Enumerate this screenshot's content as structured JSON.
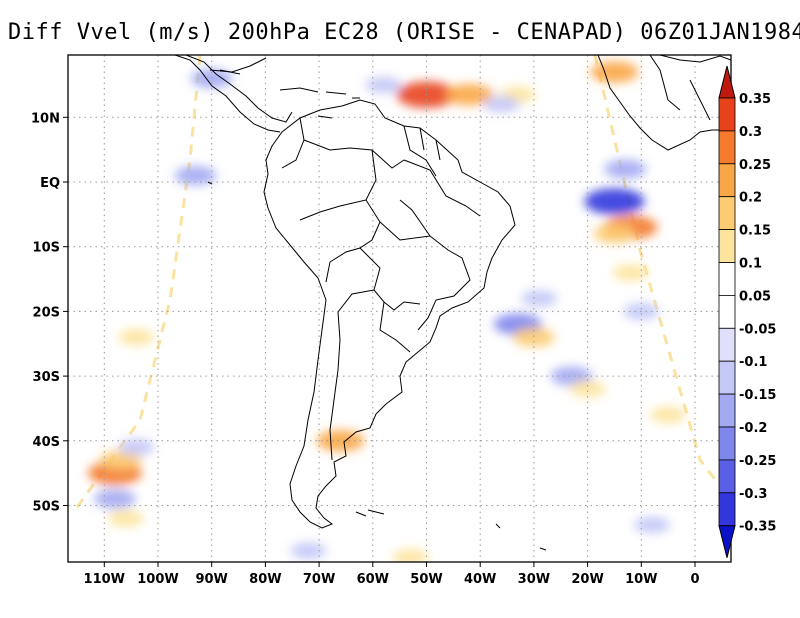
{
  "title": "Diff Vvel (m/s) 200hPa EC28 (ORISE - CENAPAD) 06Z01JAN1984",
  "x_axis_labels": [
    "110W",
    "100W",
    "90W",
    "80W",
    "70W",
    "60W",
    "50W",
    "40W",
    "30W",
    "20W",
    "10W",
    "0"
  ],
  "y_axis_labels": [
    "10N",
    "EQ",
    "10S",
    "20S",
    "30S",
    "40S",
    "50S"
  ],
  "colorbar": {
    "labels": [
      "0.35",
      "0.3",
      "0.25",
      "0.2",
      "0.15",
      "0.1",
      "0.05",
      "-0.05",
      "-0.1",
      "-0.15",
      "-0.2",
      "-0.25",
      "-0.3",
      "-0.35"
    ],
    "colors": [
      "#c01a10",
      "#e8421c",
      "#f47a2e",
      "#f9a746",
      "#fccb72",
      "#fde49e",
      "#ffffff",
      "#dfe1fb",
      "#c3c8f6",
      "#a3aaf2",
      "#7f86ec",
      "#5a5fe6",
      "#3236dc",
      "#0b12c8"
    ]
  },
  "chart_data": {
    "type": "heatmap",
    "variable": "Diff Vvel (m/s) 200hPa",
    "experiment": "EC28 (ORISE - CENAPAD)",
    "time": "06Z01JAN1984",
    "lon_range": [
      -117,
      7
    ],
    "lat_range": [
      -59,
      18
    ],
    "contour_levels": [
      -0.35,
      -0.3,
      -0.25,
      -0.2,
      -0.15,
      -0.1,
      -0.05,
      0.05,
      0.1,
      0.15,
      0.2,
      0.25,
      0.3,
      0.35
    ],
    "blobs": [
      {
        "lon": -50,
        "lat": 13.5,
        "value": 0.3
      },
      {
        "lon": -42,
        "lat": 13.5,
        "value": 0.2
      },
      {
        "lon": -33,
        "lat": 13.5,
        "value": 0.1
      },
      {
        "lon": -15,
        "lat": 17,
        "value": 0.2
      },
      {
        "lon": -58,
        "lat": 15,
        "value": -0.1
      },
      {
        "lon": -36,
        "lat": 12,
        "value": -0.1
      },
      {
        "lon": -93,
        "lat": 1,
        "value": -0.15
      },
      {
        "lon": -90,
        "lat": 16,
        "value": -0.15
      },
      {
        "lon": -15,
        "lat": -3,
        "value": -0.3
      },
      {
        "lon": -12,
        "lat": -7,
        "value": 0.25
      },
      {
        "lon": -15,
        "lat": -8,
        "value": 0.15
      },
      {
        "lon": -13,
        "lat": 2,
        "value": -0.15
      },
      {
        "lon": -33,
        "lat": -22,
        "value": -0.2
      },
      {
        "lon": -30,
        "lat": -24,
        "value": 0.15
      },
      {
        "lon": -29,
        "lat": -18,
        "value": -0.1
      },
      {
        "lon": -23,
        "lat": -30,
        "value": -0.15
      },
      {
        "lon": -20,
        "lat": -32,
        "value": 0.1
      },
      {
        "lon": -108,
        "lat": -45,
        "value": 0.25
      },
      {
        "lon": -107,
        "lat": -43,
        "value": 0.15
      },
      {
        "lon": -108,
        "lat": -49,
        "value": -0.15
      },
      {
        "lon": -104,
        "lat": -41,
        "value": -0.1
      },
      {
        "lon": -106,
        "lat": -52,
        "value": 0.1
      },
      {
        "lon": -104,
        "lat": -24,
        "value": 0.1
      },
      {
        "lon": -66,
        "lat": -40,
        "value": 0.2
      },
      {
        "lon": -72,
        "lat": -57,
        "value": -0.1
      },
      {
        "lon": -10,
        "lat": -20,
        "value": -0.1
      },
      {
        "lon": -12,
        "lat": -14,
        "value": 0.1
      },
      {
        "lon": -5,
        "lat": -36,
        "value": 0.1
      },
      {
        "lon": -53,
        "lat": -58,
        "value": 0.1
      },
      {
        "lon": -8,
        "lat": -53,
        "value": -0.1
      }
    ]
  }
}
